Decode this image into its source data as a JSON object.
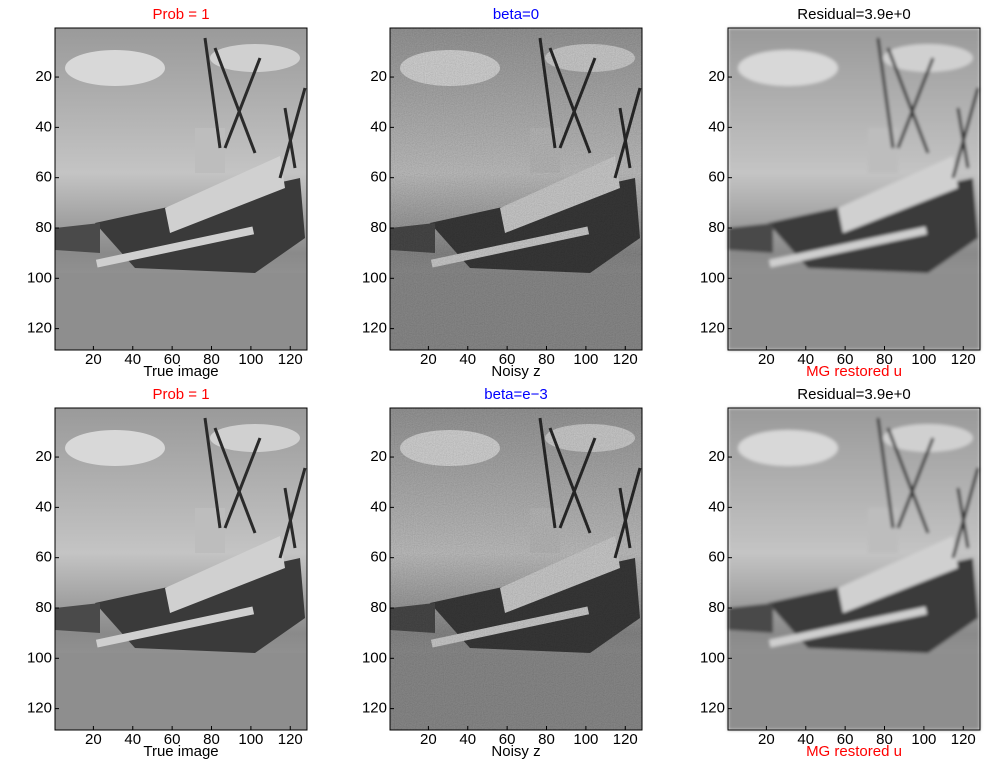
{
  "panels": [
    {
      "title": "Prob = 1",
      "title_color": "#ff0000",
      "xlabel": "True image",
      "xlabel_color": "#000000",
      "xlim": [
        0.5,
        128.5
      ],
      "ylim": [
        0.5,
        128.5
      ],
      "xticks": [
        20,
        40,
        60,
        80,
        100,
        120
      ],
      "yticks": [
        20,
        40,
        60,
        80,
        100,
        120
      ]
    },
    {
      "title": "beta=0",
      "title_color": "#0000ff",
      "xlabel": "Noisy z",
      "xlabel_color": "#000000",
      "xlim": [
        0.5,
        128.5
      ],
      "ylim": [
        0.5,
        128.5
      ],
      "xticks": [
        20,
        40,
        60,
        80,
        100,
        120
      ],
      "yticks": [
        20,
        40,
        60,
        80,
        100,
        120
      ]
    },
    {
      "title": "Residual=3.9e+0",
      "title_color": "#000000",
      "xlabel": "MG restored u",
      "xlabel_color": "#ff0000",
      "xlim": [
        0.5,
        128.5
      ],
      "ylim": [
        0.5,
        128.5
      ],
      "xticks": [
        20,
        40,
        60,
        80,
        100,
        120
      ],
      "yticks": [
        20,
        40,
        60,
        80,
        100,
        120
      ]
    },
    {
      "title": "Prob = 1",
      "title_color": "#ff0000",
      "xlabel": "True image",
      "xlabel_color": "#000000",
      "xlim": [
        0.5,
        128.5
      ],
      "ylim": [
        0.5,
        128.5
      ],
      "xticks": [
        20,
        40,
        60,
        80,
        100,
        120
      ],
      "yticks": [
        20,
        40,
        60,
        80,
        100,
        120
      ]
    },
    {
      "title": "beta=e−3",
      "title_color": "#0000ff",
      "xlabel": "Noisy z",
      "xlabel_color": "#000000",
      "xlim": [
        0.5,
        128.5
      ],
      "ylim": [
        0.5,
        128.5
      ],
      "xticks": [
        20,
        40,
        60,
        80,
        100,
        120
      ],
      "yticks": [
        20,
        40,
        60,
        80,
        100,
        120
      ]
    },
    {
      "title": "Residual=3.9e+0",
      "title_color": "#000000",
      "xlabel": "MG restored u",
      "xlabel_color": "#ff0000",
      "xlim": [
        0.5,
        128.5
      ],
      "ylim": [
        0.5,
        128.5
      ],
      "xticks": [
        20,
        40,
        60,
        80,
        100,
        120
      ],
      "yticks": [
        20,
        40,
        60,
        80,
        100,
        120
      ]
    }
  ]
}
